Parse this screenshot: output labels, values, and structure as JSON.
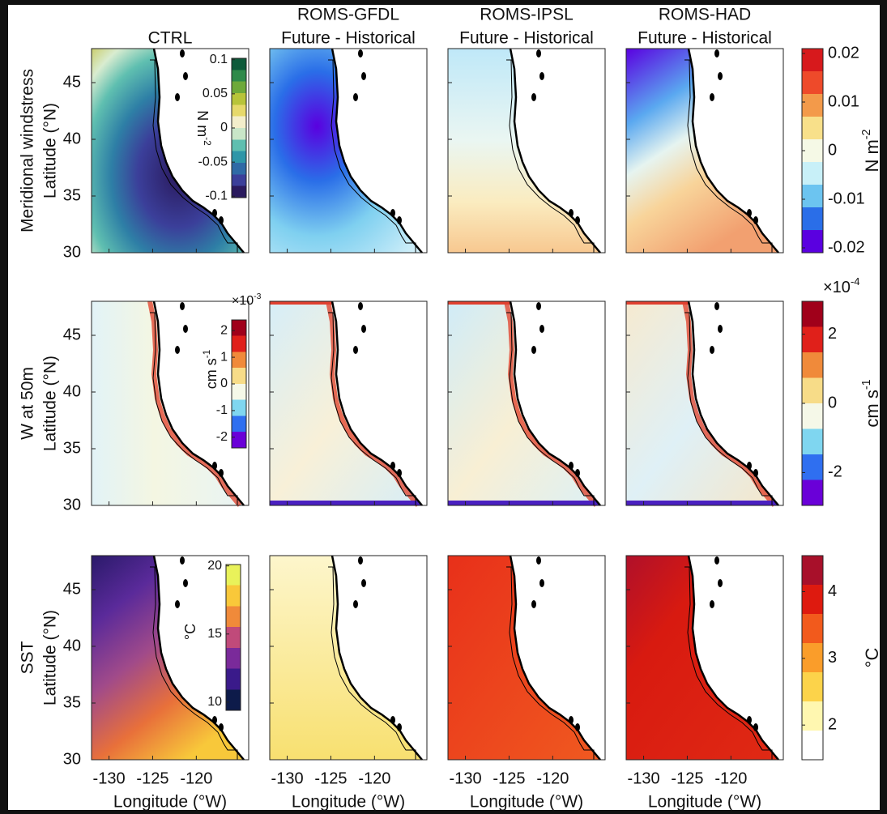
{
  "figure": {
    "columns": [
      {
        "title": [
          "CTRL"
        ]
      },
      {
        "title": [
          "ROMS-GFDL",
          "Future - Historical"
        ]
      },
      {
        "title": [
          "ROMS-IPSL",
          "Future - Historical"
        ]
      },
      {
        "title": [
          "ROMS-HAD",
          "Future - Historical"
        ]
      }
    ],
    "rows": [
      {
        "variable": "Meridional windstress",
        "inset_colorbar": {
          "lim": [
            -0.102,
            0.102
          ],
          "ticks": [
            -0.1,
            -0.05,
            0,
            0.05,
            0.1
          ],
          "unit": {
            "base": "N m",
            "exp": "-2"
          },
          "colors": [
            "#2a1a5e",
            "#3b3f9a",
            "#2f6aa6",
            "#2e96a8",
            "#5fbfb0",
            "#c9e6c8",
            "#f3eecb",
            "#e6d96b",
            "#b8c43a",
            "#6ea93a",
            "#2f8a4a",
            "#0d5a3a"
          ]
        },
        "colorbar": {
          "lim": [
            -0.021,
            0.021
          ],
          "ticks": [
            -0.02,
            -0.01,
            0,
            0.01,
            0.02
          ],
          "unit": {
            "base": "N m",
            "exp": "-2"
          },
          "colors": [
            "#5a00e0",
            "#2a6ee8",
            "#6cc4f0",
            "#c8f0f8",
            "#f5f9e6",
            "#f8e08a",
            "#f39a4a",
            "#ee4a2a",
            "#d7191c"
          ]
        }
      },
      {
        "variable": "W at 50m",
        "inset_colorbar": {
          "lim": [
            -2.4,
            2.4
          ],
          "ticks": [
            -2,
            -1,
            0,
            1,
            2
          ],
          "unit": {
            "base": "cm s",
            "exp": "-1"
          },
          "multiplier": {
            "base": "×10",
            "exp": "-3"
          },
          "colors": [
            "#6a00d8",
            "#2f6ff0",
            "#7fd6f0",
            "#f5f8e8",
            "#f7dc88",
            "#f08a3a",
            "#e0201a",
            "#a0001a"
          ]
        },
        "colorbar": {
          "lim": [
            -2.95,
            2.95
          ],
          "ticks": [
            -2,
            0,
            2
          ],
          "unit": {
            "base": "cm s",
            "exp": "-1"
          },
          "multiplier": {
            "base": "×10",
            "exp": "-4"
          },
          "colors": [
            "#6a00d8",
            "#2f6ff0",
            "#7fd6f0",
            "#f5f8e8",
            "#f7dc88",
            "#f08a3a",
            "#e0201a",
            "#a0001a"
          ]
        }
      },
      {
        "variable": "SST",
        "inset_colorbar": {
          "lim": [
            9.4,
            20.1
          ],
          "ticks": [
            10,
            15,
            20
          ],
          "unit": {
            "base": "°C"
          },
          "colors": [
            "#0d1b4a",
            "#3a1a8a",
            "#7a2a9a",
            "#c04a7a",
            "#f08a3a",
            "#f9c83a",
            "#e9f25a"
          ]
        },
        "colorbar": {
          "lim": [
            1.48,
            4.54
          ],
          "ticks": [
            2,
            3,
            4
          ],
          "unit": {
            "base": "°C"
          },
          "colors": [
            "#ffffff",
            "#fff7b0",
            "#fcd34a",
            "#fa9d2a",
            "#f25a1c",
            "#de1a0f",
            "#a8102a"
          ]
        }
      }
    ],
    "ylabel": "Latitude (°N)",
    "xlabel": "Longitude (°W)",
    "ylim": [
      30,
      48
    ],
    "yticks": [
      30,
      35,
      40,
      45
    ],
    "xlim": [
      -132,
      -114
    ],
    "xticks": [
      -130,
      -125,
      -120
    ]
  }
}
